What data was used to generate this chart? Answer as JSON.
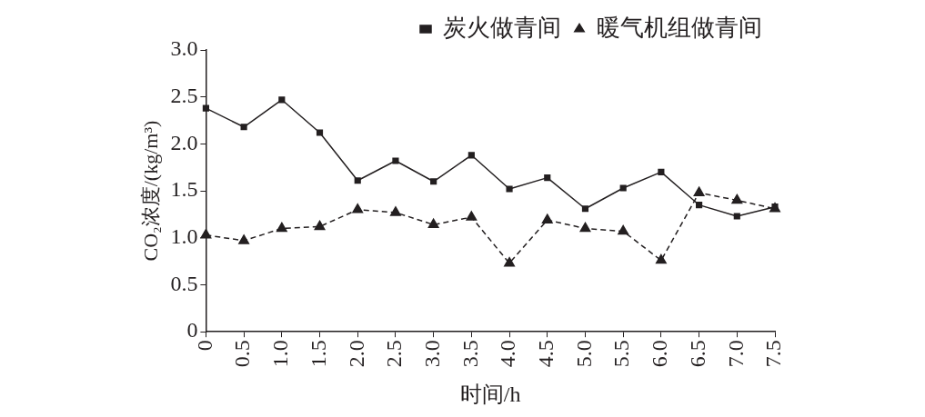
{
  "chart_data": {
    "type": "line",
    "xlabel": "时间/h",
    "ylabel": "CO₂浓度/(kg/m³)",
    "categories": [
      "0",
      "0.5",
      "1.0",
      "1.5",
      "2.0",
      "2.5",
      "3.0",
      "3.5",
      "4.0",
      "4.5",
      "5.0",
      "5.5",
      "6.0",
      "6.5",
      "7.0",
      "7.5"
    ],
    "series": [
      {
        "name": "炭火做青间",
        "color": "#231f20",
        "marker": "square",
        "line_style": "solid",
        "values": [
          2.38,
          2.18,
          2.47,
          2.12,
          1.61,
          1.82,
          1.6,
          1.88,
          1.52,
          1.64,
          1.31,
          1.53,
          1.7,
          1.35,
          1.23,
          1.33
        ]
      },
      {
        "name": "暖气机组做青间",
        "color": "#231f20",
        "marker": "triangle",
        "line_style": "dashed",
        "values": [
          1.03,
          0.97,
          1.1,
          1.12,
          1.3,
          1.27,
          1.14,
          1.22,
          0.73,
          1.19,
          1.1,
          1.07,
          0.76,
          1.48,
          1.4,
          1.31
        ]
      }
    ],
    "ylim": [
      0,
      3
    ],
    "yticks": [
      {
        "value": 0,
        "label": "0"
      },
      {
        "value": 0.5,
        "label": "0.5"
      },
      {
        "value": 1,
        "label": "1.0"
      },
      {
        "value": 1.5,
        "label": "1.5"
      },
      {
        "value": 2,
        "label": "2.0"
      },
      {
        "value": 2.5,
        "label": "2.5"
      },
      {
        "value": 3,
        "label": "3.0"
      }
    ],
    "grid": false,
    "legend": "top right"
  }
}
